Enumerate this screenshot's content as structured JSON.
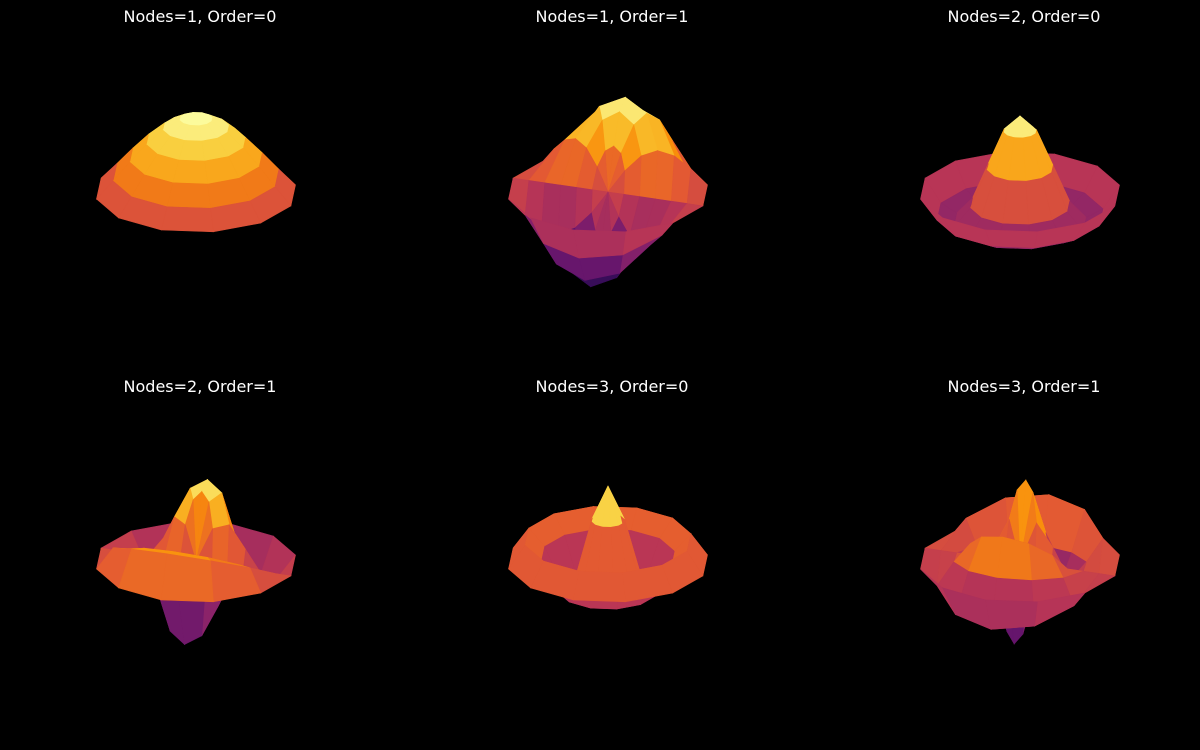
{
  "figure": {
    "background": "#000000"
  },
  "chart_data": [
    {
      "type": "surface3d",
      "title": "Nodes=1, Order=0",
      "nodes": 1,
      "order": 0,
      "colormap": "inferno"
    },
    {
      "type": "surface3d",
      "title": "Nodes=1, Order=1",
      "nodes": 1,
      "order": 1,
      "colormap": "inferno"
    },
    {
      "type": "surface3d",
      "title": "Nodes=2, Order=0",
      "nodes": 2,
      "order": 0,
      "colormap": "inferno"
    },
    {
      "type": "surface3d",
      "title": "Nodes=2, Order=1",
      "nodes": 2,
      "order": 1,
      "colormap": "inferno"
    },
    {
      "type": "surface3d",
      "title": "Nodes=3, Order=0",
      "nodes": 3,
      "order": 0,
      "colormap": "inferno"
    },
    {
      "type": "surface3d",
      "title": "Nodes=3, Order=1",
      "nodes": 3,
      "order": 1,
      "colormap": "inferno"
    }
  ]
}
